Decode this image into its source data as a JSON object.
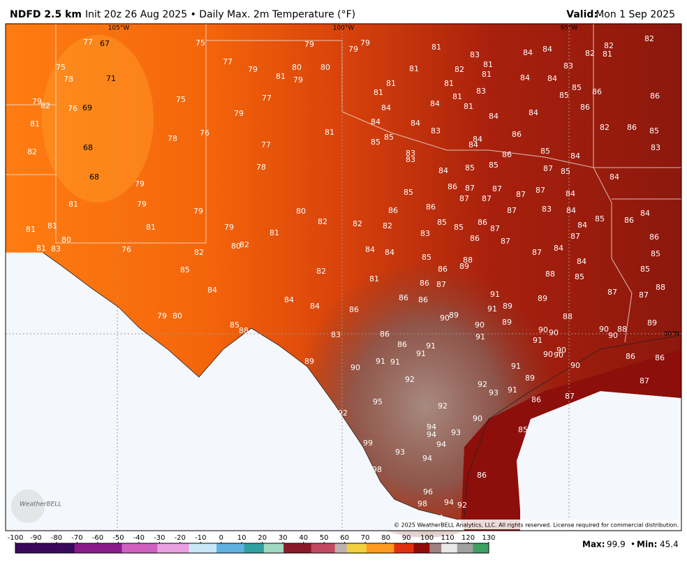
{
  "header": {
    "model": "NDFD 2.5 km",
    "description": "Init 20z 26 Aug 2025 • Daily Max. 2m Temperature (°F)",
    "valid_label": "Valid:",
    "valid_date": "Mon 1 Sep 2025"
  },
  "map": {
    "longitude_labels": [
      "105°W",
      "100°W",
      "95°W"
    ],
    "latitude_labels": [
      "30°N"
    ],
    "temperature_labels": [
      77,
      67,
      75,
      79,
      79,
      79,
      81,
      83,
      84,
      84,
      82,
      81,
      82,
      82,
      75,
      78,
      71,
      77,
      79,
      80,
      80,
      81,
      79,
      81,
      82,
      81,
      81,
      84,
      84,
      83,
      79,
      82,
      76,
      69,
      75,
      77,
      81,
      81,
      81,
      81,
      83,
      85,
      85,
      86,
      86,
      81,
      79,
      84,
      84,
      81,
      84,
      84,
      86,
      81,
      84,
      84,
      83,
      84,
      84,
      86,
      82,
      86,
      85,
      82,
      68,
      78,
      76,
      77,
      85,
      85,
      83,
      83,
      86,
      85,
      84,
      83,
      68,
      78,
      84,
      85,
      85,
      87,
      85,
      84,
      79,
      85,
      86,
      87,
      87,
      87,
      87,
      84,
      87,
      87,
      81,
      79,
      79,
      80,
      86,
      86,
      87,
      83,
      84,
      84,
      81,
      81,
      81,
      79,
      82,
      82,
      82,
      83,
      85,
      85,
      86,
      87,
      84,
      85,
      86,
      80,
      81,
      83,
      76,
      82,
      80,
      82,
      81,
      84,
      84,
      86,
      87,
      87,
      84,
      87,
      86,
      85,
      82,
      85,
      86,
      89,
      88,
      88,
      84,
      85,
      85,
      84,
      81,
      86,
      87,
      85,
      87,
      87,
      88,
      84,
      84,
      86,
      86,
      91,
      89,
      86,
      91,
      89,
      89,
      90,
      88,
      79,
      80,
      85,
      88,
      90,
      89,
      90,
      90,
      90,
      90,
      88,
      89,
      83,
      86,
      91,
      91,
      86,
      91,
      91,
      90,
      90,
      90,
      89,
      91,
      91,
      90,
      91,
      90,
      86,
      86,
      92,
      92,
      89,
      87,
      95,
      92,
      93,
      91,
      86,
      87,
      92,
      90,
      94,
      94,
      93,
      85,
      94,
      99,
      93,
      94,
      98,
      86,
      96,
      98,
      94,
      92,
      94
    ],
    "logo": "WeatherBELL",
    "copyright": "© 2025 WeatherBELL Analytics, LLC. All rights reserved. License required for commercial distribution."
  },
  "colorbar": {
    "ticks": [
      -100,
      -90,
      -80,
      -70,
      -60,
      -50,
      -40,
      -30,
      -20,
      -10,
      0,
      10,
      20,
      30,
      40,
      50,
      60,
      70,
      80,
      90,
      100,
      110,
      120,
      130
    ]
  },
  "stats": {
    "max_label": "Max:",
    "max": 99.9,
    "separator": "•",
    "min_label": "Min:",
    "min": 45.4
  }
}
